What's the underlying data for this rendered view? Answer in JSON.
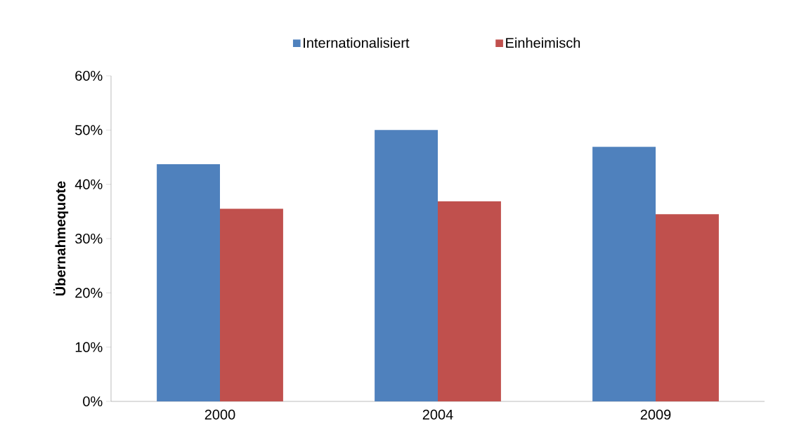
{
  "chart_data": {
    "type": "bar",
    "ylabel": "Übernahmequote",
    "categories": [
      "2000",
      "2004",
      "2009"
    ],
    "series": [
      {
        "name": "Internationalisiert",
        "color": "#4f81bd",
        "values": [
          43.7,
          50.0,
          46.9
        ]
      },
      {
        "name": "Einheimisch",
        "color": "#c0504d",
        "values": [
          35.5,
          36.9,
          34.5
        ]
      }
    ],
    "ylim": [
      0,
      60
    ],
    "yticks": [
      {
        "value": 0,
        "label": "0%"
      },
      {
        "value": 10,
        "label": "10%"
      },
      {
        "value": 20,
        "label": "20%"
      },
      {
        "value": 30,
        "label": "30%"
      },
      {
        "value": 40,
        "label": "40%"
      },
      {
        "value": 50,
        "label": "50%"
      },
      {
        "value": 60,
        "label": "60%"
      }
    ],
    "legend": "top",
    "grid": false
  }
}
